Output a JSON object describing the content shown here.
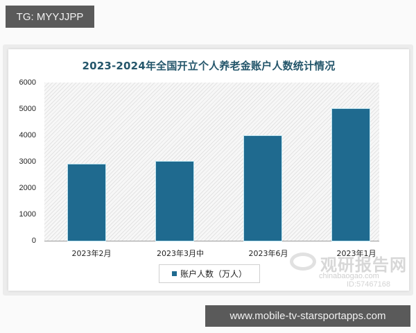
{
  "overlay": {
    "top_tag": "TG: MYYJJPP",
    "bottom_tag": "www.mobile-tv-starsportapps.com"
  },
  "watermark": {
    "brand": "观研报告网",
    "sub": "chinabaogao.com",
    "id": "ID:57467168"
  },
  "chart_data": {
    "type": "bar",
    "title": "2023-2024年全国开立个人养老金账户人数统计情况",
    "categories": [
      "2023年2月",
      "2023年3月中",
      "2023年6月",
      "2023年1月"
    ],
    "series": [
      {
        "name": "账户人数（万人）",
        "values": [
          2900,
          3000,
          3970,
          5000
        ],
        "color": "#1f6a8f"
      }
    ],
    "xlabel": "",
    "ylabel": "",
    "ylim": [
      0,
      6000
    ],
    "yticks": [
      "6000",
      "5000",
      "4000",
      "3000",
      "2000",
      "1000",
      "0"
    ],
    "grid": false,
    "legend_position": "bottom",
    "background": "diagonal-hatch"
  }
}
